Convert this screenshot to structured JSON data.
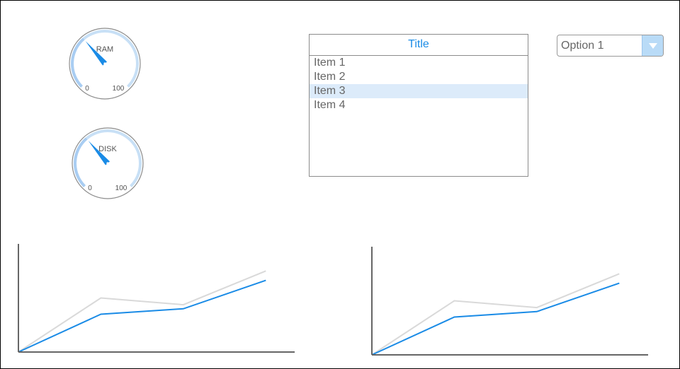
{
  "gauges": [
    {
      "label": "RAM",
      "min": "0",
      "max": "100",
      "value": 35
    },
    {
      "label": "DISK",
      "min": "0",
      "max": "100",
      "value": 35
    }
  ],
  "list": {
    "title": "Title",
    "items": [
      "Item 1",
      "Item 2",
      "Item 3",
      "Item 4"
    ],
    "selected_index": 2
  },
  "dropdown": {
    "value": "Option 1"
  },
  "colors": {
    "accent": "#1a8be6",
    "gauge_track": "#c8e0f6",
    "gauge_fill": "#a9cdf2",
    "series_secondary": "#d9d9d9",
    "axis": "#666666",
    "selected_bg": "#dcebfa"
  },
  "chart_data": [
    {
      "type": "line",
      "title": "",
      "xlabel": "",
      "ylabel": "",
      "x": [
        0,
        1,
        2,
        3
      ],
      "series": [
        {
          "values": [
            0,
            40,
            35,
            60
          ]
        },
        {
          "values": [
            0,
            28,
            32,
            53
          ]
        }
      ],
      "xlim": [
        0,
        3.35
      ],
      "ylim": [
        0,
        80
      ]
    },
    {
      "type": "line",
      "title": "",
      "xlabel": "",
      "ylabel": "",
      "x": [
        0,
        1,
        2,
        3
      ],
      "series": [
        {
          "values": [
            0,
            40,
            35,
            60
          ]
        },
        {
          "values": [
            0,
            28,
            32,
            53
          ]
        }
      ],
      "xlim": [
        0,
        3.35
      ],
      "ylim": [
        0,
        80
      ]
    }
  ]
}
